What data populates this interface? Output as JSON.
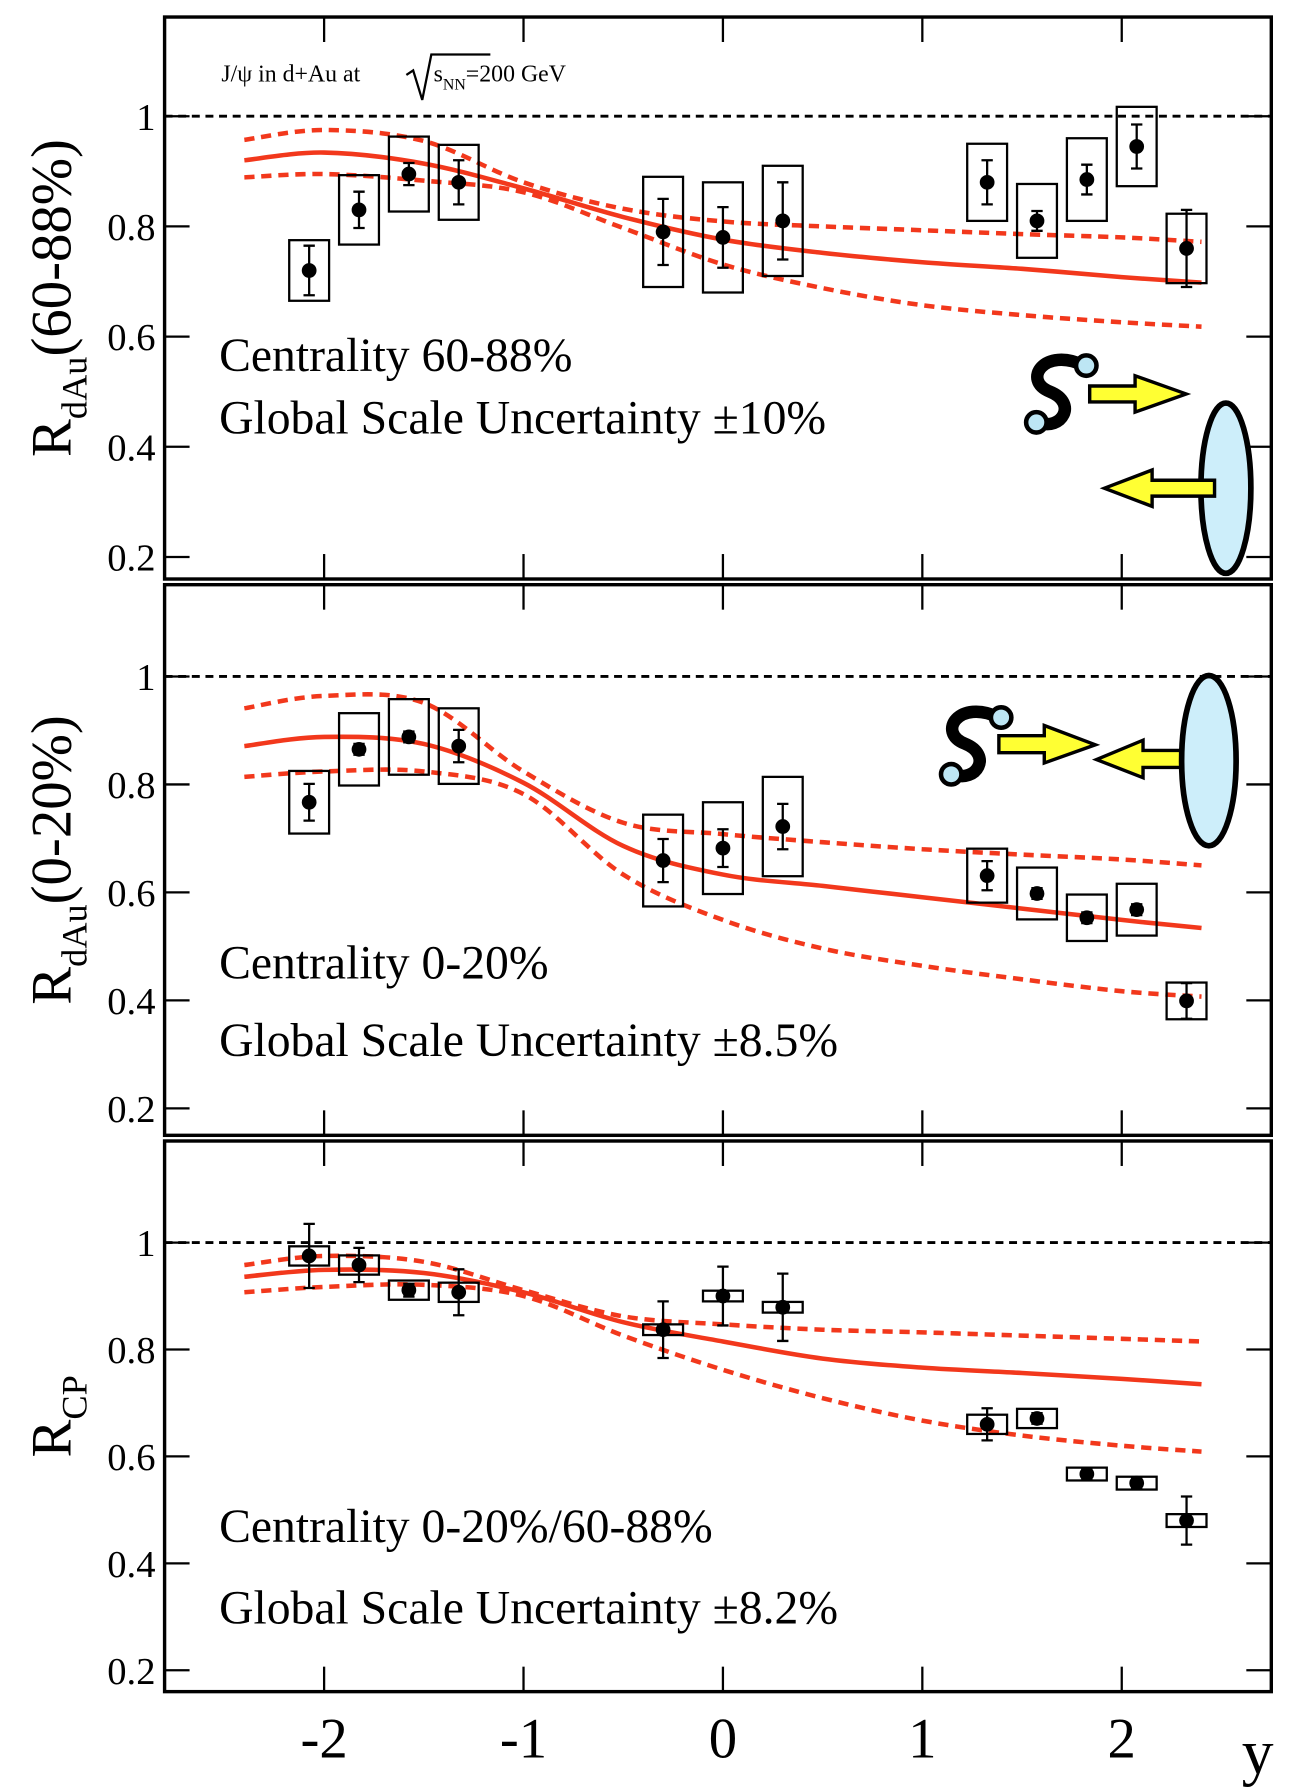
{
  "chart_data": [
    {
      "type": "errorbar",
      "title": {
        "text": "J/ψ in d+Au at",
        "sqrt": "s",
        "sub": "NN",
        "suffix": "=200 GeV"
      },
      "ylabel": {
        "main": "R",
        "sub": "dAu",
        "suffix": "(60-88%)"
      },
      "annotations": [
        "Centrality 60-88%",
        "Global Scale Uncertainty ±10%"
      ],
      "xlim": [
        -2.8,
        2.75
      ],
      "xticks": [
        -2,
        -1,
        0,
        1,
        2
      ],
      "ylim": [
        0.16,
        1.18
      ],
      "yticks": [
        0.2,
        0.4,
        0.6,
        0.8,
        1
      ],
      "reference": 1,
      "color": "#000000",
      "x": [
        -2.075,
        -1.825,
        -1.575,
        -1.325,
        -0.3,
        0,
        0.3,
        1.325,
        1.575,
        1.825,
        2.075,
        2.325
      ],
      "values": [
        0.72,
        0.83,
        0.895,
        0.88,
        0.79,
        0.78,
        0.81,
        0.88,
        0.81,
        0.885,
        0.945,
        0.76
      ],
      "errors": [
        0.045,
        0.033,
        0.02,
        0.04,
        0.06,
        0.055,
        0.07,
        0.04,
        0.018,
        0.027,
        0.04,
        0.07
      ],
      "syst_errors": [
        0.055,
        0.063,
        0.068,
        0.068,
        0.1,
        0.1,
        0.1,
        0.07,
        0.067,
        0.075,
        0.072,
        0.063
      ],
      "curve_x": [
        -2.4,
        -2,
        -1.5,
        -1,
        -0.5,
        0,
        0.5,
        1,
        1.5,
        2,
        2.4
      ],
      "curves": [
        {
          "style": "solid",
          "color": "#f2381c",
          "values": [
            0.92,
            0.934,
            0.914,
            0.869,
            0.817,
            0.776,
            0.752,
            0.735,
            0.723,
            0.708,
            0.698
          ]
        },
        {
          "style": "dashed",
          "color": "#f2381c",
          "values": [
            0.957,
            0.975,
            0.955,
            0.88,
            0.832,
            0.809,
            0.8,
            0.793,
            0.786,
            0.78,
            0.772
          ]
        },
        {
          "style": "dashed",
          "color": "#f2381c",
          "values": [
            0.889,
            0.895,
            0.883,
            0.862,
            0.797,
            0.731,
            0.688,
            0.657,
            0.639,
            0.626,
            0.618
          ]
        }
      ]
    },
    {
      "type": "errorbar",
      "ylabel": {
        "main": "R",
        "sub": "dAu",
        "suffix": "(0-20%)"
      },
      "annotations": [
        "Centrality 0-20%",
        "Global Scale Uncertainty ±8.5%"
      ],
      "xlim": [
        -2.8,
        2.75
      ],
      "xticks": [
        -2,
        -1,
        0,
        1,
        2
      ],
      "ylim": [
        0.15,
        1.17
      ],
      "yticks": [
        0.2,
        0.4,
        0.6,
        0.8,
        1
      ],
      "reference": 1,
      "color": "#000000",
      "x": [
        -2.075,
        -1.825,
        -1.575,
        -1.325,
        -0.3,
        0,
        0.3,
        1.325,
        1.575,
        1.825,
        2.075,
        2.325
      ],
      "values": [
        0.767,
        0.865,
        0.888,
        0.871,
        0.659,
        0.682,
        0.722,
        0.631,
        0.598,
        0.553,
        0.568,
        0.399
      ],
      "errors": [
        0.034,
        0.01,
        0.01,
        0.03,
        0.04,
        0.035,
        0.042,
        0.027,
        0.01,
        0.01,
        0.01,
        0.033
      ],
      "syst_errors": [
        0.058,
        0.067,
        0.07,
        0.07,
        0.085,
        0.085,
        0.092,
        0.05,
        0.048,
        0.043,
        0.048,
        0.034
      ],
      "curve_x": [
        -2.4,
        -2,
        -1.5,
        -1,
        -0.5,
        0,
        0.5,
        1,
        1.5,
        2,
        2.4
      ],
      "curves": [
        {
          "style": "solid",
          "color": "#f2381c",
          "values": [
            0.871,
            0.888,
            0.875,
            0.803,
            0.686,
            0.633,
            0.612,
            0.591,
            0.57,
            0.549,
            0.534
          ]
        },
        {
          "style": "dashed",
          "color": "#f2381c",
          "values": [
            0.941,
            0.964,
            0.951,
            0.824,
            0.729,
            0.708,
            0.693,
            0.68,
            0.67,
            0.661,
            0.65
          ]
        },
        {
          "style": "dashed",
          "color": "#f2381c",
          "values": [
            0.814,
            0.824,
            0.824,
            0.782,
            0.633,
            0.549,
            0.496,
            0.464,
            0.439,
            0.417,
            0.407
          ]
        }
      ]
    },
    {
      "type": "errorbar",
      "ylabel": {
        "main": "R",
        "sub": "CP"
      },
      "annotations": [
        "Centrality 0-20%/60-88%",
        "Global Scale Uncertainty ±8.2%"
      ],
      "xlabel": "y",
      "xlim": [
        -2.8,
        2.75
      ],
      "xticks": [
        -2,
        -1,
        0,
        1,
        2
      ],
      "ylim": [
        0.16,
        1.19
      ],
      "yticks": [
        0.2,
        0.4,
        0.6,
        0.8,
        1
      ],
      "reference": 1,
      "color": "#000000",
      "x": [
        -2.075,
        -1.825,
        -1.575,
        -1.325,
        -0.3,
        0,
        0.3,
        1.325,
        1.575,
        1.825,
        2.075,
        2.325
      ],
      "values": [
        0.975,
        0.958,
        0.911,
        0.907,
        0.837,
        0.9,
        0.879,
        0.66,
        0.671,
        0.567,
        0.55,
        0.48
      ],
      "errors": [
        0.06,
        0.032,
        0.012,
        0.043,
        0.053,
        0.055,
        0.063,
        0.03,
        0.01,
        0.01,
        0.01,
        0.045
      ],
      "syst_errors": [
        0.018,
        0.018,
        0.018,
        0.018,
        0.01,
        0.01,
        0.01,
        0.018,
        0.018,
        0.012,
        0.012,
        0.012
      ],
      "curve_x": [
        -2.4,
        -2,
        -1.5,
        -1,
        -0.5,
        0,
        0.5,
        1,
        1.5,
        2,
        2.4
      ],
      "curves": [
        {
          "style": "solid",
          "color": "#f2381c",
          "values": [
            0.936,
            0.949,
            0.943,
            0.907,
            0.851,
            0.815,
            0.783,
            0.766,
            0.756,
            0.745,
            0.735
          ]
        },
        {
          "style": "dashed",
          "color": "#f2381c",
          "values": [
            0.958,
            0.975,
            0.964,
            0.911,
            0.862,
            0.847,
            0.837,
            0.832,
            0.826,
            0.82,
            0.815
          ]
        },
        {
          "style": "dashed",
          "color": "#f2381c",
          "values": [
            0.907,
            0.917,
            0.921,
            0.9,
            0.826,
            0.762,
            0.709,
            0.667,
            0.639,
            0.62,
            0.609
          ]
        }
      ]
    }
  ]
}
